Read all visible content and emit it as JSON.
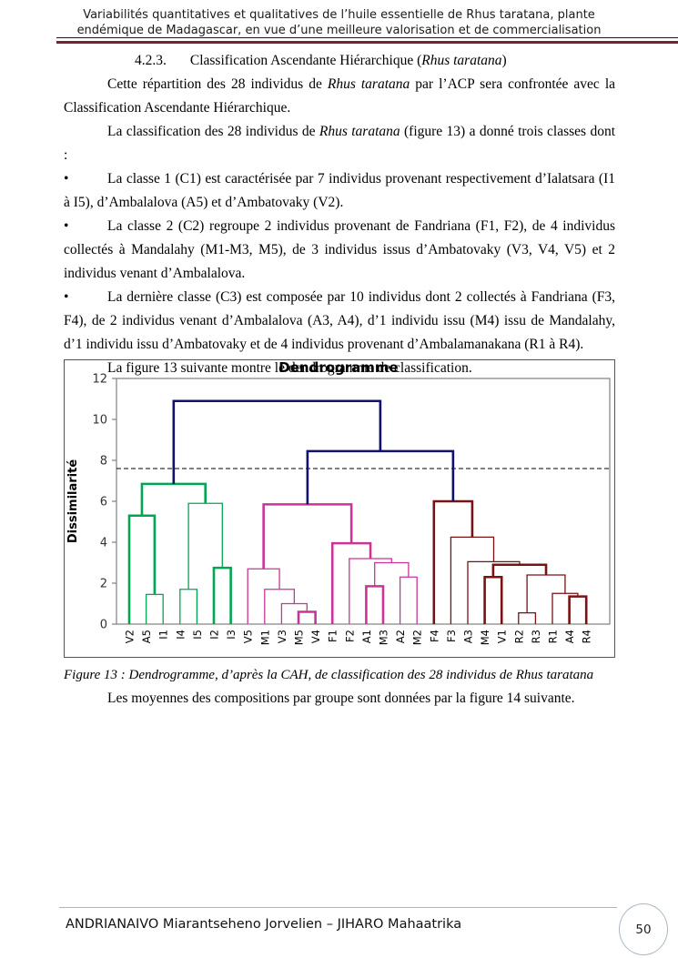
{
  "doc": {
    "bullet_char": "•"
  },
  "header": {
    "line1": "Variabilités quantitatives et qualitatives de l’huile essentielle de Rhus taratana, plante",
    "line2": "endémique de Madagascar, en vue d’une meilleure valorisation et de commercialisation",
    "rule_color": "#772237"
  },
  "heading": {
    "number": "4.2.3.",
    "runs": [
      {
        "text": "Classification Ascendante Hiérarchique ("
      },
      {
        "text": "Rhus taratana",
        "italic": true
      },
      {
        "text": ")"
      }
    ]
  },
  "paragraphs": [
    {
      "runs": [
        {
          "text": "Cette répartition des 28 individus de "
        },
        {
          "text": "Rhus taratana",
          "italic": true
        },
        {
          "text": " par l’ACP sera confrontée avec la Classification Ascendante Hiérarchique."
        }
      ]
    },
    {
      "runs": [
        {
          "text": "La classification des 28 individus de "
        },
        {
          "text": "Rhus taratana",
          "italic": true
        },
        {
          "text": " (figure 13) a donné trois classes dont :"
        }
      ]
    },
    {
      "runs": [
        {
          "text": "La classe 1 (C1) est caractérisée par 7 individus provenant respectivement d’Ialatsara (I1 à I5), d’Ambalalova (A5) et d’Ambatovaky (V2)."
        }
      ]
    },
    {
      "runs": [
        {
          "text": "La classe 2 (C2) regroupe 2 individus provenant de Fandriana (F1, F2), de 4 individus collectés à Mandalahy (M1-M3, M5), de 3 individus issus d’Ambatovaky (V3, V4, V5) et 2 individus venant d’Ambalalova."
        }
      ]
    },
    {
      "runs": [
        {
          "text": "La dernière classe (C3) est composée par 10 individus dont 2 collectés à Fandriana (F3, F4), de 2 individus venant d’Ambalalova (A3, A4), d’1 individu issu (M4) issu de Mandalahy, d’1 individu issu d’Ambatovaky et de 4 individus provenant d’Ambalamanakana (R1 à R4)."
        }
      ]
    },
    {
      "runs": [
        {
          "text": "La figure 13 suivante montre le dendrogramme de classification."
        }
      ]
    }
  ],
  "figure_caption": {
    "runs": [
      {
        "text": "Figure 13 : Dendrogramme, d’après la CAH, de classification des 28 individus de Rhus taratana",
        "italic": true
      }
    ]
  },
  "after_figure": {
    "runs": [
      {
        "text": "Les moyennes des compositions par groupe sont données par la figure 14 suivante."
      }
    ]
  },
  "footer": {
    "author": "ANDRIANAIVO Miarantseheno Jorvelien – JIHARO Mahaatrika",
    "page_number": "50"
  },
  "chart_data": {
    "type": "dendrogram",
    "title": "Dendrogramme",
    "ylabel": "Dissimilarité",
    "ylim": [
      0,
      12
    ],
    "yticks": [
      0,
      2,
      4,
      6,
      8,
      10,
      12
    ],
    "cut_line": 7.6,
    "grid": false,
    "leaves": [
      "V2",
      "A5",
      "I1",
      "I4",
      "I5",
      "I2",
      "I3",
      "V5",
      "M1",
      "V3",
      "M5",
      "V4",
      "F1",
      "F2",
      "A1",
      "M3",
      "A2",
      "M2",
      "F4",
      "F3",
      "A3",
      "M4",
      "V1",
      "R2",
      "R3",
      "R1",
      "A4",
      "R4"
    ],
    "colors": {
      "green": "#00a651",
      "magenta": "#cc3399",
      "darkred": "#7a1113",
      "navy": "#10106d",
      "axis": "#808080",
      "cut": "#000000"
    },
    "merges": [
      {
        "id": "g1",
        "a": "A5",
        "b": "I1",
        "h": 1.45,
        "c": "green",
        "bold": false
      },
      {
        "id": "g2",
        "a": "V2",
        "b": "g1",
        "h": 5.3,
        "c": "green",
        "bold": true
      },
      {
        "id": "g3",
        "a": "I4",
        "b": "I5",
        "h": 1.7,
        "c": "green",
        "bold": false
      },
      {
        "id": "g4",
        "a": "I2",
        "b": "I3",
        "h": 2.75,
        "c": "green",
        "bold": true
      },
      {
        "id": "g5",
        "a": "g3",
        "b": "g4",
        "h": 5.9,
        "c": "green",
        "bold": false
      },
      {
        "id": "g6",
        "a": "g2",
        "b": "g5",
        "h": 6.85,
        "c": "green",
        "bold": true
      },
      {
        "id": "m1",
        "a": "M5",
        "b": "V4",
        "h": 0.6,
        "c": "magenta",
        "bold": true
      },
      {
        "id": "m2",
        "a": "V3",
        "b": "m1",
        "h": 1.0,
        "c": "magenta",
        "bold": false
      },
      {
        "id": "m3",
        "a": "M1",
        "b": "m2",
        "h": 1.7,
        "c": "magenta",
        "bold": false
      },
      {
        "id": "m4",
        "a": "V5",
        "b": "m3",
        "h": 2.7,
        "c": "magenta",
        "bold": false
      },
      {
        "id": "m5",
        "a": "A1",
        "b": "M3",
        "h": 1.85,
        "c": "magenta",
        "bold": true
      },
      {
        "id": "m6",
        "a": "A2",
        "b": "M2",
        "h": 2.3,
        "c": "magenta",
        "bold": false
      },
      {
        "id": "m7",
        "a": "m5",
        "b": "m6",
        "h": 3.0,
        "c": "magenta",
        "bold": false
      },
      {
        "id": "m8",
        "a": "F2",
        "b": "m7",
        "h": 3.2,
        "c": "magenta",
        "bold": false
      },
      {
        "id": "m9",
        "a": "F1",
        "b": "m8",
        "h": 3.95,
        "c": "magenta",
        "bold": true
      },
      {
        "id": "m10",
        "a": "m4",
        "b": "m9",
        "h": 5.85,
        "c": "magenta",
        "bold": true
      },
      {
        "id": "c1",
        "a": "A4",
        "b": "R4",
        "h": 1.35,
        "c": "darkred",
        "bold": true
      },
      {
        "id": "c2",
        "a": "R1",
        "b": "c1",
        "h": 1.5,
        "c": "darkred",
        "bold": false
      },
      {
        "id": "c3",
        "a": "R2",
        "b": "R3",
        "h": 0.55,
        "c": "darkred",
        "bold": false
      },
      {
        "id": "c4",
        "a": "c3",
        "b": "c2",
        "h": 2.4,
        "c": "darkred",
        "bold": false
      },
      {
        "id": "c5",
        "a": "M4",
        "b": "V1",
        "h": 2.3,
        "c": "darkred",
        "bold": true
      },
      {
        "id": "c6",
        "a": "c5",
        "b": "c4",
        "h": 2.9,
        "c": "darkred",
        "bold": true
      },
      {
        "id": "c7",
        "a": "A3",
        "b": "c6",
        "h": 3.05,
        "c": "darkred",
        "bold": false
      },
      {
        "id": "c8",
        "a": "F3",
        "b": "c7",
        "h": 4.25,
        "c": "darkred",
        "bold": false
      },
      {
        "id": "c9",
        "a": "F4",
        "b": "c8",
        "h": 6.0,
        "c": "darkred",
        "bold": true
      },
      {
        "id": "n1",
        "a": "m10",
        "b": "c9",
        "h": 8.45,
        "c": "navy",
        "bold": true
      },
      {
        "id": "n2",
        "a": "g6",
        "b": "n1",
        "h": 10.9,
        "c": "navy",
        "bold": true
      }
    ]
  }
}
